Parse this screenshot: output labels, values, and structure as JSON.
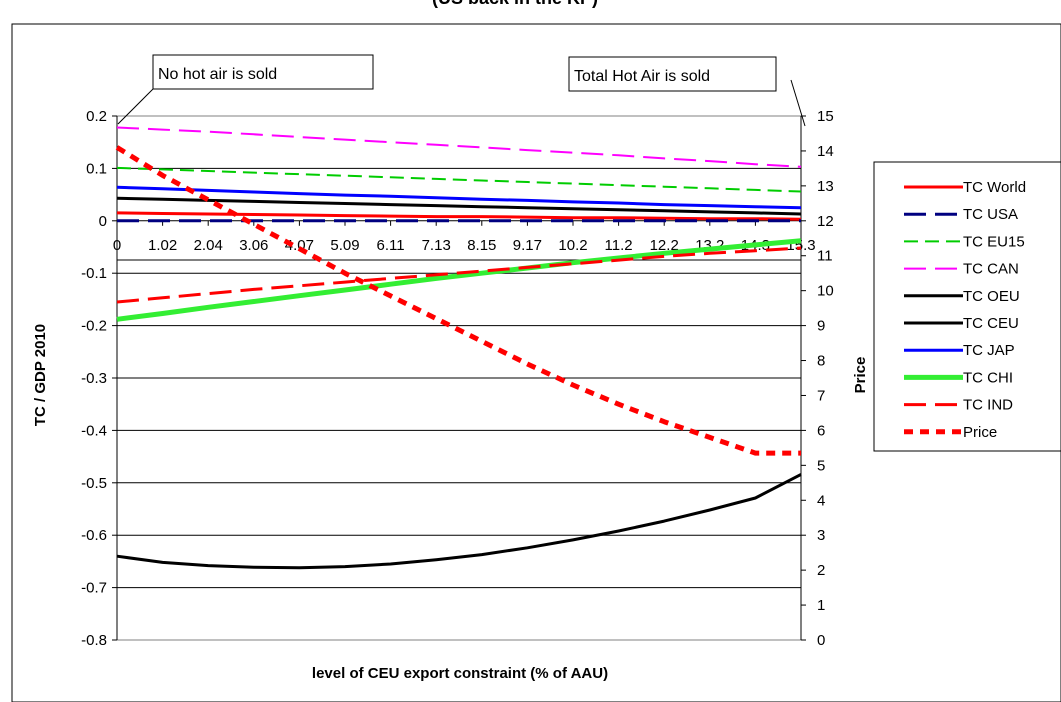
{
  "chart_data": {
    "type": "line",
    "title": "(US back in the KP)",
    "xlabel": "level of CEU export constraint (% of AAU)",
    "ylabel": "TC / GDP 2010",
    "y2label": "Price",
    "x": [
      "0",
      "1.02",
      "2.04",
      "3.06",
      "4.07",
      "5.09",
      "6.11",
      "7.13",
      "8.15",
      "9.17",
      "10.2",
      "11.2",
      "12.2",
      "13.2",
      "14.3",
      "15.3"
    ],
    "ylim": [
      -0.8,
      0.2
    ],
    "yticks": [
      "0.2",
      "0.1",
      "0",
      "-0.1",
      "-0.2",
      "-0.3",
      "-0.4",
      "-0.5",
      "-0.6",
      "-0.7",
      "-0.8"
    ],
    "y2lim": [
      0,
      15
    ],
    "y2ticks": [
      "15",
      "14",
      "13",
      "12",
      "11",
      "10",
      "9",
      "8",
      "7",
      "6",
      "5",
      "4",
      "3",
      "2",
      "1",
      "0"
    ],
    "grid": true,
    "legend_position": "right",
    "series": [
      {
        "name": "TC World",
        "axis": "left",
        "color": "#ff0000",
        "dash": "solid",
        "width": 3,
        "values": [
          0.015,
          0.014,
          0.013,
          0.012,
          0.011,
          0.01,
          0.009,
          0.008,
          0.008,
          0.007,
          0.006,
          0.006,
          0.005,
          0.004,
          0.004,
          0.003
        ]
      },
      {
        "name": "TC USA",
        "axis": "left",
        "color": "#000080",
        "dash": "long",
        "width": 3,
        "values": [
          0,
          0,
          0,
          0,
          0,
          0,
          0,
          0,
          0,
          0,
          0,
          0,
          0,
          0,
          0,
          0
        ]
      },
      {
        "name": "TC EU15",
        "axis": "left",
        "color": "#00cc00",
        "dash": "medium",
        "width": 2,
        "values": [
          0.101,
          0.098,
          0.095,
          0.092,
          0.089,
          0.086,
          0.083,
          0.08,
          0.077,
          0.074,
          0.071,
          0.068,
          0.065,
          0.062,
          0.059,
          0.056
        ]
      },
      {
        "name": "TC CAN",
        "axis": "left",
        "color": "#ff00ff",
        "dash": "long",
        "width": 2,
        "values": [
          0.178,
          0.174,
          0.17,
          0.165,
          0.16,
          0.155,
          0.15,
          0.145,
          0.14,
          0.135,
          0.13,
          0.125,
          0.119,
          0.114,
          0.108,
          0.103
        ]
      },
      {
        "name": "TC OEU",
        "axis": "left",
        "color": "#000000",
        "dash": "solid",
        "width": 3,
        "values": [
          0.043,
          0.041,
          0.039,
          0.037,
          0.035,
          0.033,
          0.031,
          0.029,
          0.027,
          0.025,
          0.023,
          0.021,
          0.019,
          0.017,
          0.015,
          0.013
        ]
      },
      {
        "name": "TC CEU",
        "axis": "left",
        "color": "#000000",
        "dash": "solid",
        "width": 3,
        "values": [
          -0.64,
          -0.652,
          -0.658,
          -0.661,
          -0.662,
          -0.66,
          -0.655,
          -0.647,
          -0.637,
          -0.624,
          -0.609,
          -0.592,
          -0.573,
          -0.552,
          -0.529,
          -0.484
        ]
      },
      {
        "name": "TC JAP",
        "axis": "left",
        "color": "#0000ff",
        "dash": "solid",
        "width": 3,
        "values": [
          0.064,
          0.061,
          0.058,
          0.055,
          0.052,
          0.049,
          0.047,
          0.044,
          0.041,
          0.039,
          0.036,
          0.034,
          0.031,
          0.029,
          0.027,
          0.025
        ]
      },
      {
        "name": "TC CHI",
        "axis": "left",
        "color": "#33ee33",
        "dash": "solid",
        "width": 5,
        "values": [
          -0.188,
          -0.177,
          -0.165,
          -0.154,
          -0.143,
          -0.132,
          -0.121,
          -0.11,
          -0.1,
          -0.09,
          -0.08,
          -0.071,
          -0.062,
          -0.054,
          -0.046,
          -0.038
        ]
      },
      {
        "name": "TC IND",
        "axis": "left",
        "color": "#ff0000",
        "dash": "long",
        "width": 3,
        "values": [
          -0.155,
          -0.147,
          -0.139,
          -0.131,
          -0.124,
          -0.117,
          -0.11,
          -0.103,
          -0.096,
          -0.089,
          -0.082,
          -0.075,
          -0.068,
          -0.062,
          -0.057,
          -0.052
        ]
      },
      {
        "name": "Price",
        "axis": "right",
        "color": "#ff0000",
        "dash": "short",
        "width": 5,
        "values": [
          14.1,
          13.3,
          12.6,
          11.9,
          11.2,
          10.5,
          9.85,
          9.2,
          8.55,
          7.9,
          7.3,
          6.75,
          6.25,
          5.8,
          5.35,
          5.35
        ]
      }
    ],
    "annotations": [
      "No hot air is sold",
      "Total Hot Air is sold"
    ]
  }
}
